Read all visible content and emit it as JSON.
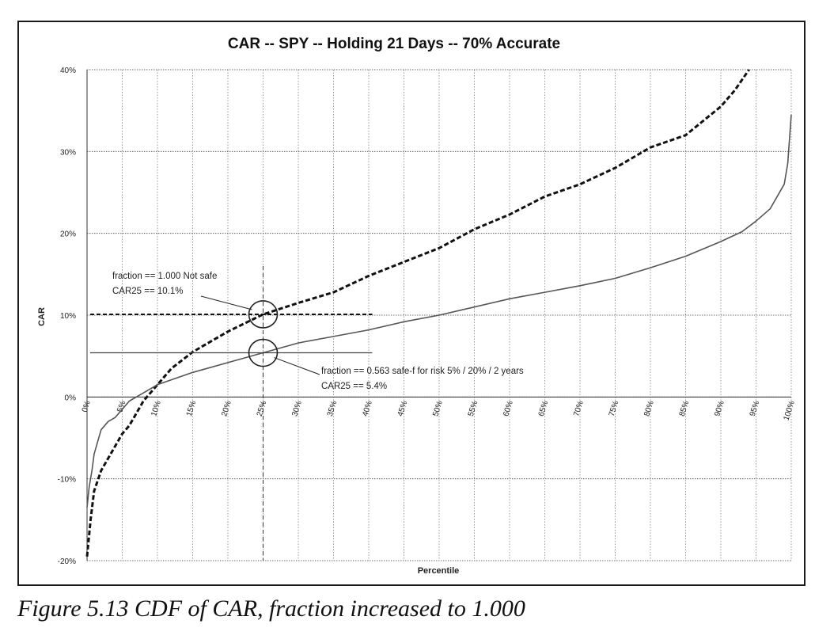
{
  "caption": "Figure 5.13  CDF of CAR, fraction increased to 1.000",
  "chart_data": {
    "type": "line",
    "title": "CAR -- SPY -- Holding 21 Days -- 70% Accurate",
    "xlabel": "Percentile",
    "ylabel": "CAR",
    "xlim": [
      0,
      100
    ],
    "ylim": [
      -20,
      40
    ],
    "x_ticks": [
      "0%",
      "5%",
      "10%",
      "15%",
      "20%",
      "25%",
      "30%",
      "35%",
      "40%",
      "45%",
      "50%",
      "55%",
      "60%",
      "65%",
      "70%",
      "75%",
      "80%",
      "85%",
      "90%",
      "95%",
      "100%"
    ],
    "y_ticks": [
      "-20%",
      "-10%",
      "0%",
      "10%",
      "20%",
      "30%",
      "40%"
    ],
    "y_tick_values": [
      -20,
      -10,
      0,
      10,
      20,
      30,
      40
    ],
    "grid": true,
    "series": [
      {
        "style": "dashed",
        "color": "#111111",
        "x": [
          0,
          0.5,
          1,
          2,
          3,
          4,
          5,
          6,
          7,
          8,
          10,
          12,
          15,
          20,
          25,
          30,
          35,
          40,
          45,
          50,
          55,
          60,
          65,
          70,
          75,
          80,
          85,
          90,
          92,
          94
        ],
        "y": [
          -19.5,
          -15,
          -11.5,
          -9,
          -7.5,
          -6,
          -4.5,
          -3.5,
          -2,
          -0.5,
          1.5,
          3.5,
          5.5,
          8,
          10.1,
          11.5,
          12.8,
          14.8,
          16.5,
          18.2,
          20.5,
          22.3,
          24.5,
          26,
          28,
          30.5,
          32,
          35.5,
          37.5,
          40
        ]
      },
      {
        "style": "solid",
        "color": "#555555",
        "x": [
          0,
          0.3,
          0.7,
          1,
          1.5,
          2,
          3,
          4,
          5,
          6,
          8,
          10,
          15,
          20,
          25,
          30,
          35,
          40,
          45,
          50,
          55,
          60,
          65,
          70,
          75,
          80,
          85,
          90,
          93,
          95,
          97,
          98,
          99,
          99.5,
          100
        ],
        "y": [
          -13.5,
          -11,
          -9,
          -7,
          -5.5,
          -4,
          -3,
          -2.5,
          -1.5,
          -0.5,
          0.5,
          1.5,
          3,
          4.2,
          5.4,
          6.6,
          7.4,
          8.2,
          9.2,
          10,
          11,
          12,
          12.8,
          13.6,
          14.5,
          15.8,
          17.2,
          19,
          20.2,
          21.5,
          23,
          24.5,
          26,
          28.5,
          34.5
        ]
      }
    ],
    "annotations": [
      {
        "lines": [
          "fraction == 1.000  Not safe",
          "CAR25 == 10.1%"
        ],
        "x": 25,
        "y": 10.1
      },
      {
        "lines": [
          "fraction == 0.563  safe-f  for risk 5% / 20% / 2 years",
          "CAR25 == 5.4%"
        ],
        "x": 25,
        "y": 5.4
      }
    ]
  }
}
